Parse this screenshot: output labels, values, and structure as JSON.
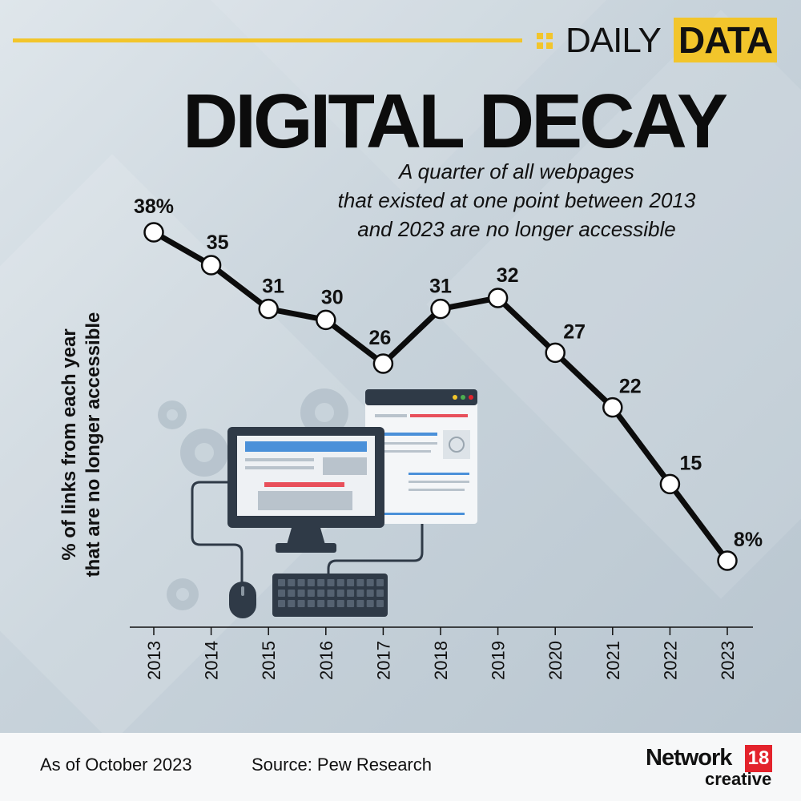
{
  "brand": {
    "daily": "DAILY",
    "data": "DATA"
  },
  "title": "DIGITAL DECAY",
  "subtitle_lines": [
    "A quarter of all webpages",
    "that existed at one point between 2013",
    "and 2023 are no longer accessible"
  ],
  "colors": {
    "accent": "#f2c52b",
    "line": "#0c0c0c",
    "marker_fill": "#ffffff",
    "logo_red": "#e3232c"
  },
  "chart_data": {
    "type": "line",
    "title": "DIGITAL DECAY",
    "ylabel": "% of links from each year that are no longer accessible",
    "xlabel": "",
    "x": [
      "2013",
      "2014",
      "2015",
      "2016",
      "2017",
      "2018",
      "2019",
      "2020",
      "2021",
      "2022",
      "2023"
    ],
    "series": [
      {
        "values": [
          38,
          35,
          31,
          30,
          26,
          31,
          32,
          27,
          22,
          15,
          8
        ]
      }
    ],
    "data_labels": [
      "38%",
      "35",
      "31",
      "30",
      "26",
      "31",
      "32",
      "27",
      "22",
      "15",
      "8%"
    ],
    "ylim": [
      0,
      40
    ],
    "grid": false,
    "legend": "none"
  },
  "footer": {
    "as_of": "As of October 2023",
    "source": "Source: Pew Research",
    "logo_word": "Network",
    "logo_number": "18",
    "logo_sub": "creative"
  },
  "illustration": {
    "icons": [
      "gear-icon",
      "monitor-icon",
      "browser-window-icon",
      "keyboard-icon",
      "mouse-icon"
    ]
  }
}
